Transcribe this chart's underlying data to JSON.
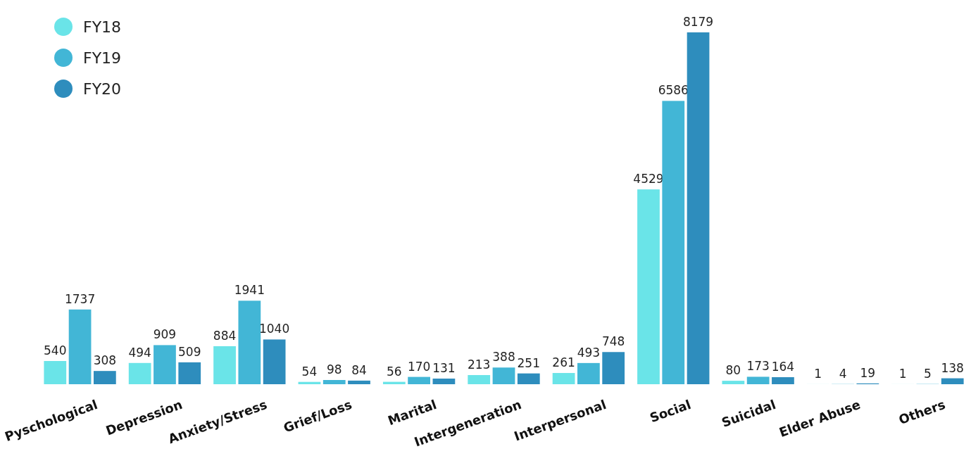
{
  "chart_data": {
    "type": "bar",
    "categories": [
      "Pyschological",
      "Depression",
      "Anxiety/Stress",
      "Grief/Loss",
      "Marital",
      "Intergeneration",
      "Interpersonal",
      "Social",
      "Suicidal",
      "Elder Abuse",
      "Others"
    ],
    "series": [
      {
        "name": "FY18",
        "color": "#6ae4e8",
        "values": [
          540,
          494,
          884,
          54,
          56,
          213,
          261,
          4529,
          80,
          1,
          1
        ]
      },
      {
        "name": "FY19",
        "color": "#42b6d6",
        "values": [
          1737,
          909,
          1941,
          98,
          170,
          388,
          493,
          6586,
          173,
          4,
          5
        ]
      },
      {
        "name": "FY20",
        "color": "#2e8dbd",
        "values": [
          308,
          509,
          1040,
          84,
          131,
          251,
          748,
          8179,
          164,
          19,
          138
        ]
      }
    ],
    "data_labels": true,
    "legend": "top left"
  }
}
